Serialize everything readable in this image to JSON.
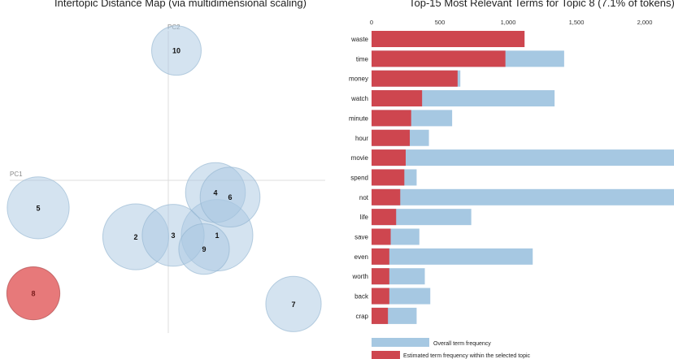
{
  "colors": {
    "topic_fill": "#a9c8e2",
    "topic_stroke": "#8fb2cf",
    "selected_fill": "#e15759",
    "selected_stroke": "#a33a3c",
    "overall_bar": "#a6c8e2",
    "topic_bar": "#ce464f",
    "axis_line": "#dddddd",
    "axis_label": "#888888"
  },
  "chart_data": [
    {
      "type": "scatter",
      "title": "Intertopic Distance Map (via multidimensional scaling)",
      "xlabel": "PC1",
      "ylabel": "PC2",
      "xlim": [
        -1,
        1
      ],
      "ylim": [
        -1,
        1
      ],
      "grid": false,
      "selected_topic": 8,
      "points": [
        {
          "topic": "1",
          "x": 0.3,
          "y": -0.36,
          "size": 1.0
        },
        {
          "topic": "2",
          "x": -0.2,
          "y": -0.37,
          "size": 0.85
        },
        {
          "topic": "3",
          "x": 0.03,
          "y": -0.36,
          "size": 0.75
        },
        {
          "topic": "4",
          "x": 0.29,
          "y": -0.08,
          "size": 0.7
        },
        {
          "topic": "5",
          "x": -0.8,
          "y": -0.18,
          "size": 0.75
        },
        {
          "topic": "6",
          "x": 0.38,
          "y": -0.11,
          "size": 0.7
        },
        {
          "topic": "7",
          "x": 0.77,
          "y": -0.81,
          "size": 0.6
        },
        {
          "topic": "8",
          "x": -0.83,
          "y": -0.74,
          "size": 0.55
        },
        {
          "topic": "9",
          "x": 0.22,
          "y": -0.45,
          "size": 0.5
        },
        {
          "topic": "10",
          "x": 0.05,
          "y": 0.85,
          "size": 0.48
        }
      ]
    },
    {
      "type": "bar",
      "orientation": "horizontal",
      "title": "Top-15 Most Relevant Terms for Topic 8 (7.1% of tokens)",
      "xlim": [
        0,
        2200
      ],
      "xticks": [
        "0",
        "500",
        "1,000",
        "1,500",
        "2,000"
      ],
      "xtick_values": [
        0,
        500,
        1000,
        1500,
        2000
      ],
      "categories": [
        "waste",
        "time",
        "money",
        "watch",
        "minute",
        "hour",
        "movie",
        "spend",
        "not",
        "life",
        "save",
        "even",
        "worth",
        "back",
        "crap"
      ],
      "series": [
        {
          "name": "Overall term frequency",
          "values": [
            1120,
            1410,
            650,
            1340,
            590,
            420,
            2600,
            330,
            2600,
            730,
            350,
            1180,
            390,
            430,
            330
          ]
        },
        {
          "name": "Estimated term frequency within the selected topic",
          "values": [
            1120,
            980,
            630,
            370,
            290,
            280,
            250,
            240,
            210,
            180,
            140,
            130,
            130,
            130,
            120
          ]
        }
      ],
      "legend": {
        "position": "bottom-left",
        "overall_label": "Overall term frequency",
        "topic_label": "Estimated term frequency within the selected topic"
      }
    }
  ]
}
